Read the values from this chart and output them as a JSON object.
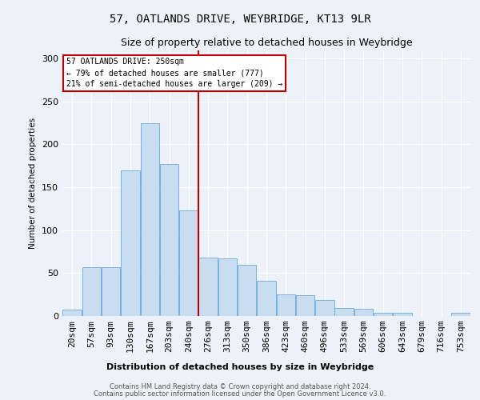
{
  "title": "57, OATLANDS DRIVE, WEYBRIDGE, KT13 9LR",
  "subtitle": "Size of property relative to detached houses in Weybridge",
  "xlabel": "Distribution of detached houses by size in Weybridge",
  "ylabel": "Number of detached properties",
  "bar_labels": [
    "20sqm",
    "57sqm",
    "93sqm",
    "130sqm",
    "167sqm",
    "203sqm",
    "240sqm",
    "276sqm",
    "313sqm",
    "350sqm",
    "386sqm",
    "423sqm",
    "460sqm",
    "496sqm",
    "533sqm",
    "569sqm",
    "606sqm",
    "643sqm",
    "679sqm",
    "716sqm",
    "753sqm"
  ],
  "bar_values": [
    7,
    57,
    57,
    170,
    225,
    177,
    123,
    68,
    67,
    60,
    41,
    25,
    24,
    19,
    9,
    8,
    4,
    4,
    0,
    0,
    4
  ],
  "bar_color": "#c9ddf0",
  "bar_edge_color": "#5b9bd5",
  "vline_color": "#c00000",
  "annotation_text": "57 OATLANDS DRIVE: 250sqm\n← 79% of detached houses are smaller (777)\n21% of semi-detached houses are larger (209) →",
  "annotation_box_color": "#c00000",
  "ylim": [
    0,
    310
  ],
  "yticks": [
    0,
    50,
    100,
    150,
    200,
    250,
    300
  ],
  "footer_line1": "Contains HM Land Registry data © Crown copyright and database right 2024.",
  "footer_line2": "Contains public sector information licensed under the Open Government Licence v3.0.",
  "background_color": "#edf2fa",
  "grid_color": "#ffffff",
  "title_fontsize": 10,
  "subtitle_fontsize": 9
}
